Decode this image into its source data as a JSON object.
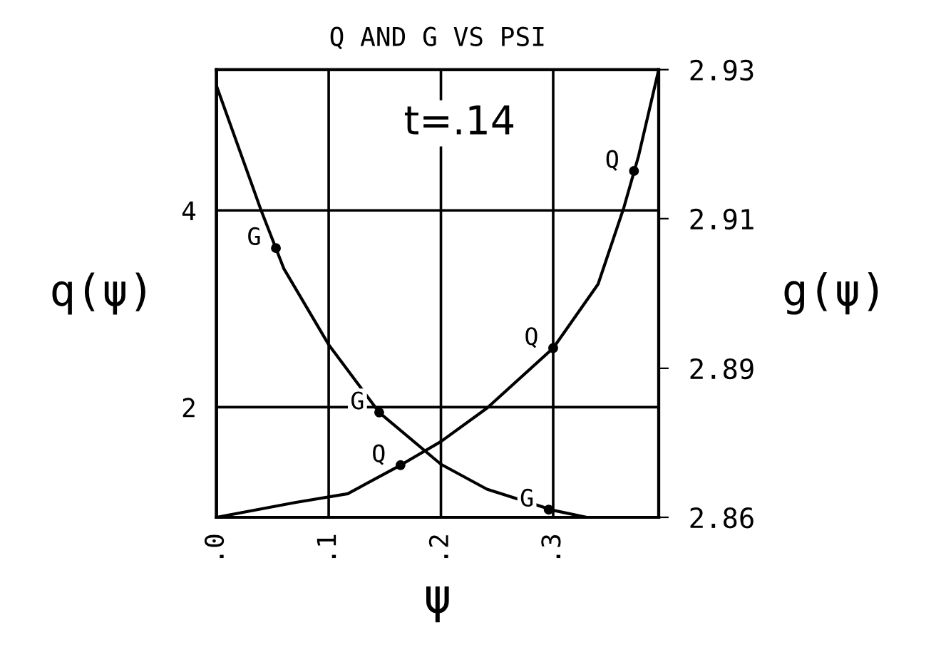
{
  "chart_data": {
    "type": "line",
    "title": "Q AND G VS PSI",
    "xlabel": "ψ",
    "ylabel": "q(ψ)",
    "y2label": "g(ψ)",
    "annotations": [
      "t=.14"
    ],
    "series": [
      {
        "color": "#000000",
        "x": [
          0,
          0.07,
          0.117,
          0.164,
          0.2,
          0.241,
          0.3,
          0.34,
          0.363,
          0.376,
          0.394
        ],
        "values": [
          0.88,
          1.03,
          1.12,
          1.41,
          1.65,
          1.99,
          2.6,
          3.25,
          4.03,
          4.55,
          5.43
        ]
      },
      {
        "type": "scatter",
        "name": "Q",
        "color": "#000000",
        "marker": "circle",
        "x": [
          0.164,
          0.3,
          0.372
        ],
        "values": [
          1.41,
          2.6,
          4.4
        ]
      },
      {
        "axis": "y2",
        "color": "#000000",
        "x": [
          0,
          0.04,
          0.06,
          0.1,
          0.145,
          0.2,
          0.241,
          0.3,
          0.33,
          0.394
        ],
        "values": [
          2.93,
          2.9104,
          2.9014,
          2.8895,
          2.8789,
          2.8708,
          2.8669,
          2.8636,
          2.8625,
          2.8625
        ]
      },
      {
        "type": "scatter",
        "axis": "y2",
        "name": "G",
        "color": "#000000",
        "marker": "circle",
        "x": [
          0.053,
          0.145,
          0.296
        ],
        "values": [
          2.9046,
          2.8789,
          2.8637
        ]
      }
    ],
    "xlim": [
      0,
      0.394
    ],
    "xticks": [
      {
        "value": 0,
        "label": ".0"
      },
      {
        "value": 0.1,
        "label": ".1"
      },
      {
        "value": 0.2,
        "label": ".2"
      },
      {
        "value": 0.3,
        "label": ".3"
      }
    ],
    "ylim": [
      0.88,
      5.43
    ],
    "yticks": [
      2,
      4
    ],
    "y2lim": [
      2.8625,
      2.9325
    ],
    "y2ticks": [
      {
        "value": 2.8625,
        "label": "2.86"
      },
      {
        "value": 2.8858,
        "label": "2.89"
      },
      {
        "value": 2.9092,
        "label": "2.91"
      },
      {
        "value": 2.9325,
        "label": "2.93"
      }
    ],
    "grid": true,
    "marker": "none",
    "line_style": "solid"
  }
}
